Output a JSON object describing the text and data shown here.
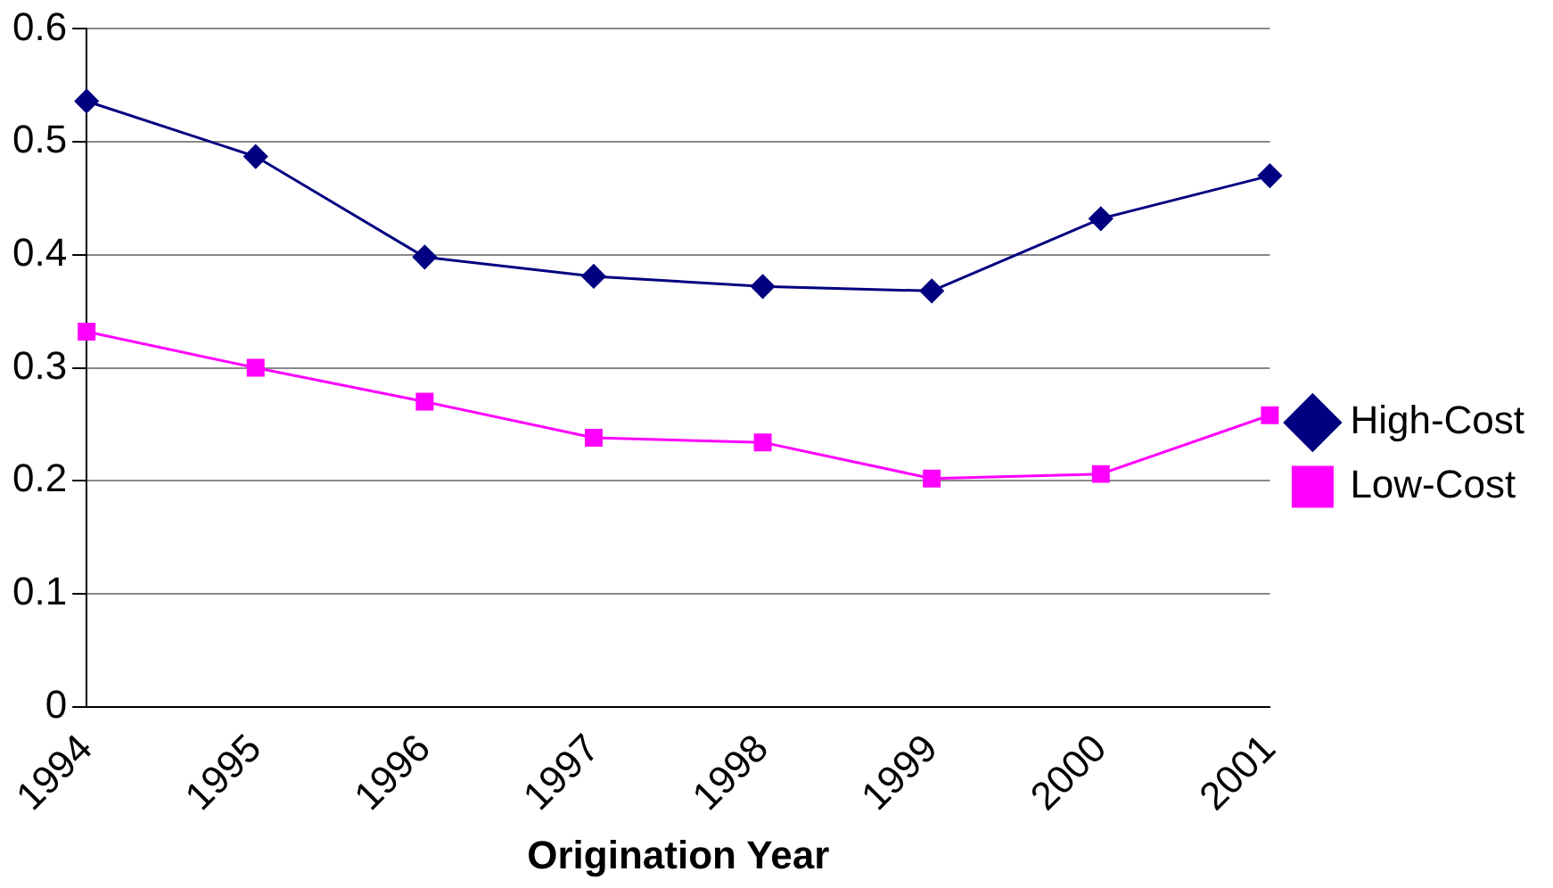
{
  "chart_data": {
    "type": "line",
    "xlabel": "Origination Year",
    "categories": [
      "1994",
      "1995",
      "1996",
      "1997",
      "1998",
      "1999",
      "2000",
      "2001"
    ],
    "series": [
      {
        "name": "High-Cost",
        "color": "#000080",
        "marker": "diamond",
        "values": [
          0.536,
          0.487,
          0.398,
          0.381,
          0.372,
          0.368,
          0.432,
          0.47
        ]
      },
      {
        "name": "Low-Cost",
        "color": "#ff00ff",
        "marker": "square",
        "values": [
          0.332,
          0.3,
          0.27,
          0.238,
          0.234,
          0.202,
          0.206,
          0.258
        ]
      }
    ],
    "ylim": [
      0,
      0.6
    ],
    "yticks": [
      0,
      0.1,
      0.2,
      0.3,
      0.4,
      0.5,
      0.6
    ],
    "grid": "y",
    "legend": "right",
    "line_style": "solid"
  }
}
